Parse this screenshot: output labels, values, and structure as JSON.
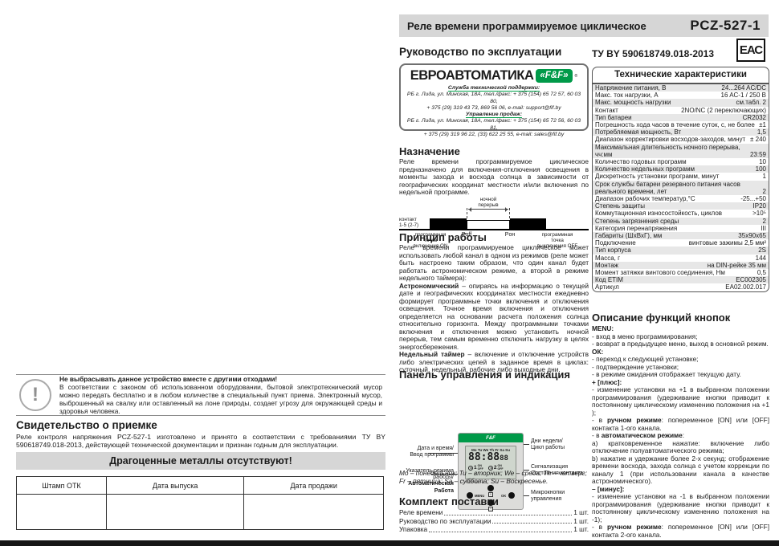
{
  "title_bar": {
    "title": "Реле времени программируемое циклическое",
    "model": "PCZ-527-1"
  },
  "eac_label": "ЕАС",
  "left_page": {
    "warning": {
      "title": "Не выбрасывать данное устройство вместе с другими отходами!",
      "body": "В соответствии с законом об использованном оборудовании, бытовой электротехнический мусор можно передать бесплатно и в любом количестве в специальный пункт приема. Электронный мусор, выброшенный на свалку или оставленный на лоне природы, создает угрозу для окружающей среды и здоровья человека.",
      "icon": "!"
    },
    "acceptance": {
      "heading": "Свидетельство о приемке",
      "body": "Реле контроля напряжения PCZ-527-1 изготовлено и принято в соответствии с требованиями ТУ BY 590618749.018-2013, действующей технической документации и признан годным для эксплуатации."
    },
    "no_metals_banner": "Драгоценные металлы отсутствуют!",
    "stamp_table": {
      "headers": [
        "Штамп ОТК",
        "Дата выпуска",
        "Дата продажи"
      ]
    }
  },
  "manual": {
    "heading": "Руководство по эксплуатации",
    "brand": {
      "name": "ЕВРОАВТОМАТИКА",
      "logo": "«F&F»",
      "reg": "®",
      "support_label": "Служба технической поддержки:",
      "support_line1": "РБ г. Лида, ул. Минская, 18А, тел./факс: + 375 (154) 65 72 57, 60 03 80,",
      "support_line2": "+ 375 (29) 319 43 73, 869 56 06, e-mail: support@fif.by",
      "sales_label": "Управление продаж:",
      "sales_line1": "РБ г. Лида, ул. Минская, 18А, тел./факс: + 375 (154) 65 72 56, 60 03 81,",
      "sales_line2": "+ 375 (29) 319 96 22, (33) 622 25 55, e-mail: sales@fif.by"
    },
    "purpose": {
      "heading": "Назначение",
      "body": "Реле времени программируемое циклическое предназначено для включения-отключения освещения в моменты захода и восхода солнца в зависимости от географических координат местности и/или включения по недельной программе."
    },
    "diagram": {
      "contact_label": "контакт\n1-5 (2-7)",
      "night_break": "ночной\nперерыв",
      "on_label": "программная\nточка\nвключения ON",
      "poff": "Pоff",
      "pon": "Pон",
      "off_label": "программная\nточка\nвыключения OFF"
    },
    "principle": {
      "heading": "Принцип работы",
      "paragraphs": [
        {
          "segs": [
            {
              "t": "Реле времени программируемое циклическое может использовать любой канал в одном из режимов (реле может быть настроено таким образом, что один канал будет работать астрономическом режиме, а второй в режиме недельного таймера):",
              "b": false
            }
          ]
        },
        {
          "segs": [
            {
              "t": "Астрономический",
              "b": true
            },
            {
              "t": " – опираясь на информацию о текущей дате и географических координатах местности ежедневно формирует программные точки включения и отключения освещения. Точное время включения и отключения определяется на основании расчета положения солнца относительно горизонта. Между программными точками включения и отключения можно установить ночной перерыв, тем самым временно отключить нагрузку в целях энергосбережения.",
              "b": false
            }
          ]
        },
        {
          "segs": [
            {
              "t": "Недельный таймер",
              "b": true
            },
            {
              "t": " – включение и отключение устройств либо электрических цепей в заданное время в циклах: суточный, недельный, рабочие либо выходные дни.",
              "b": false
            }
          ]
        }
      ]
    },
    "panel": {
      "heading": "Панель управления и индикация",
      "label_datetime": "Дата и время/\nВвод  программы",
      "label_mode_normal": "Указатель режима\nработы/",
      "label_mode_bold": "Автоматическая\nРабота",
      "label_days": "Дни недели/\nЦикл работы",
      "label_signal": "Сигнализация\nСостояния контакта",
      "label_buttons": "Микрокнопки\nуправления",
      "days_note": "Mo – понедельник; Tu – вторник; We – среда; Th – четверг; Fr – пятница; Sa – суббота; Su – Воскресенье."
    },
    "device": {
      "brand": "F&F",
      "days": "Mo Tu We Th Fr Sa Su",
      "digits": "88:88",
      "digits_small": "88",
      "ch1": "1",
      "ch2": "2",
      "on": "ON",
      "off": "OFF",
      "model": "PCZ-527-1",
      "menu": "MENU",
      "ok": "OK",
      "plus": "+",
      "minus": "−"
    },
    "package": {
      "heading": "Комплект поставки",
      "items": [
        {
          "name": "Реле времени",
          "qty": "1 шт."
        },
        {
          "name": "Руководство по эксплуатации",
          "qty": "1 шт."
        },
        {
          "name": "Упаковка",
          "qty": "1 шт."
        }
      ]
    }
  },
  "specs": {
    "standard": "ТУ BY 590618749.018-2013",
    "table_title": "Технические характеристики",
    "rows": [
      {
        "label": "Напряжение питания, В",
        "value": "24...264 AC/DC"
      },
      {
        "label": "Макс. ток нагрузки, А",
        "value": "16 AC-1 / 250 В"
      },
      {
        "label": "Макс. мощность нагрузки",
        "value": "см.табл. 2"
      },
      {
        "label": "Контакт",
        "value": "2NO/NC (2 переключающих)"
      },
      {
        "label": "Тип батареи",
        "value": "CR2032"
      },
      {
        "label": "Погрешность хода часов в течение суток, с, не более",
        "value": "±1"
      },
      {
        "label": "Потребляемая мощность, Вт",
        "value": "1,5"
      },
      {
        "label": "Диапазон корректировки восходов-заходов, минут",
        "value": "± 240"
      },
      {
        "label": "Максимальная длительность ночного перерыва, чч:мм",
        "value": "23:59"
      },
      {
        "label": "Количество годовых программ",
        "value": "10"
      },
      {
        "label": "Количество недельных программ",
        "value": "100"
      },
      {
        "label": "Дискретность установки программ, минут",
        "value": "1"
      },
      {
        "label": "Срок службы батареи резервного питания часов реального времени, лет",
        "value": "2"
      },
      {
        "label": "Диапазон рабочих температур,°С",
        "value": "-25...+50"
      },
      {
        "label": "Степень защиты",
        "value": "IP20"
      },
      {
        "label": "Коммутационная износостойкость, циклов",
        "value": ">10⁵"
      },
      {
        "label": "Степень загрязнения среды",
        "value": "2"
      },
      {
        "label": "Категория перенапряжения",
        "value": "III"
      },
      {
        "label": "Габариты (ШхВхГ), мм",
        "value": "35x90x65"
      },
      {
        "label": "Подключение",
        "value": "винтовые зажимы 2,5 мм²"
      },
      {
        "label": "Тип корпуса",
        "value": "2S"
      },
      {
        "label": "Масса, г",
        "value": "144"
      },
      {
        "label": "Монтаж",
        "value": "на DIN-рейке 35 мм"
      },
      {
        "label": "Момент затяжки винтового соединения, Нм",
        "value": "0,5"
      },
      {
        "label": "Код ETIM",
        "value": "EC002305"
      },
      {
        "label": "Артикул",
        "value": "EA02.002.017"
      }
    ]
  },
  "buttons_desc": {
    "heading": "Описание функций кнопок",
    "lines": [
      {
        "segs": [
          {
            "t": "MENU:",
            "b": true
          }
        ]
      },
      {
        "segs": [
          {
            "t": "- вход в меню программирования;",
            "b": false
          }
        ]
      },
      {
        "segs": [
          {
            "t": "- возврат в предыдущее меню, выход в основной режим.",
            "b": false
          }
        ]
      },
      {
        "segs": [
          {
            "t": "ОК:",
            "b": true
          }
        ]
      },
      {
        "segs": [
          {
            "t": "- переход к следующей установке;",
            "b": false
          }
        ]
      },
      {
        "segs": [
          {
            "t": "- подтверждение установки;",
            "b": false
          }
        ]
      },
      {
        "segs": [
          {
            "t": "- в режиме ожидания отображает текущую дату.",
            "b": false
          }
        ]
      },
      {
        "segs": [
          {
            "t": "+ [плюс]:",
            "b": true
          }
        ]
      },
      {
        "segs": [
          {
            "t": "- изменение установки на +1 в выбранном положении программирования (удерживание кнопки приводит к постоянному циклическому изменению положения на +1 );",
            "b": false
          }
        ]
      },
      {
        "segs": [
          {
            "t": "- в ",
            "b": false
          },
          {
            "t": "ручном режиме",
            "b": true
          },
          {
            "t": ": попеременное [ON] или [OFF] контакта 1-ого канала.",
            "b": false
          }
        ]
      },
      {
        "segs": [
          {
            "t": "- в ",
            "b": false
          },
          {
            "t": "автоматическом режиме",
            "b": true
          },
          {
            "t": ":",
            "b": false
          }
        ]
      },
      {
        "segs": [
          {
            "t": "a) кратковременное нажатие: включение либо отключение полуавтоматического режима;",
            "b": false
          }
        ]
      },
      {
        "segs": [
          {
            "t": "b) нажатие и удержание более 2-х секунд: отображение времени восхода, захода солнца с учетом коррекции по каналу 1 (при использовании канала в качестве астрономического).",
            "b": false
          }
        ]
      },
      {
        "segs": [
          {
            "t": "– [минус]:",
            "b": true
          }
        ]
      },
      {
        "segs": [
          {
            "t": "- изменение установки на -1 в выбранном положении программирования (удерживание кнопки приводит к постоянному циклическому изменению положения на -1);",
            "b": false
          }
        ]
      },
      {
        "segs": [
          {
            "t": "- в ",
            "b": false
          },
          {
            "t": "ручном режиме",
            "b": true
          },
          {
            "t": ": попеременное [ON] или [OFF] контакта 2-ого канала.",
            "b": false
          }
        ]
      }
    ]
  }
}
